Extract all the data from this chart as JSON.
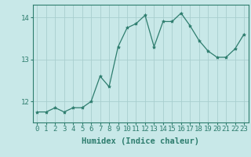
{
  "x": [
    0,
    1,
    2,
    3,
    4,
    5,
    6,
    7,
    8,
    9,
    10,
    11,
    12,
    13,
    14,
    15,
    16,
    17,
    18,
    19,
    20,
    21,
    22,
    23
  ],
  "y": [
    11.75,
    11.75,
    11.85,
    11.75,
    11.85,
    11.85,
    12.0,
    12.6,
    12.35,
    13.3,
    13.75,
    13.85,
    14.05,
    13.3,
    13.9,
    13.9,
    14.1,
    13.8,
    13.45,
    13.2,
    13.05,
    13.05,
    13.25,
    13.6
  ],
  "line_color": "#2e7d6e",
  "marker": "*",
  "marker_size": 3,
  "bg_color": "#c8e8e8",
  "grid_color": "#a8cece",
  "xlabel": "Humidex (Indice chaleur)",
  "xlim": [
    -0.5,
    23.5
  ],
  "ylim": [
    11.5,
    14.3
  ],
  "yticks": [
    12,
    13,
    14
  ],
  "xtick_labels": [
    "0",
    "1",
    "2",
    "3",
    "4",
    "5",
    "6",
    "7",
    "8",
    "9",
    "10",
    "11",
    "12",
    "13",
    "14",
    "15",
    "16",
    "17",
    "18",
    "19",
    "20",
    "21",
    "22",
    "23"
  ],
  "xlabel_fontsize": 7.5,
  "tick_fontsize": 6.5,
  "label_color": "#2e7d6e",
  "spine_color": "#2e7d6e"
}
